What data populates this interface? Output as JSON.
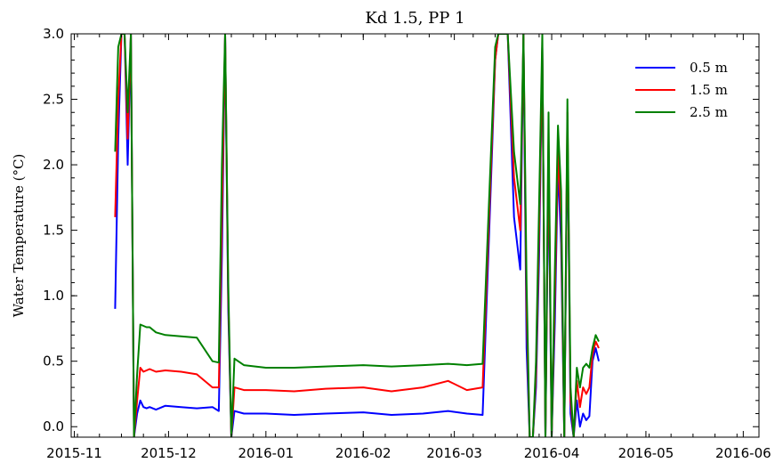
{
  "chart_data": {
    "type": "line",
    "title": "Kd 1.5, PP 1",
    "xlabel": "",
    "ylabel": "Water Temperature (°C)",
    "xlim": [
      "2015-10-31",
      "2016-06-06"
    ],
    "ylim": [
      -0.08,
      3.0
    ],
    "grid": false,
    "legend_position": "top-right",
    "x_ticks": [
      "2015-11",
      "2015-12",
      "2016-01",
      "2016-02",
      "2016-03",
      "2016-04",
      "2016-05",
      "2016-06"
    ],
    "y_ticks": [
      "0.0",
      "0.5",
      "1.0",
      "1.5",
      "2.0",
      "2.5",
      "3.0"
    ],
    "series": [
      {
        "name": "0.5 m",
        "color": "#0000ff",
        "x": [
          "2015-11-14",
          "2015-11-15",
          "2015-11-16",
          "2015-11-17",
          "2015-11-18",
          "2015-11-19",
          "2015-11-20",
          "2015-11-21",
          "2015-11-22",
          "2015-11-23",
          "2015-11-24",
          "2015-11-25",
          "2015-11-27",
          "2015-11-30",
          "2015-12-05",
          "2015-12-10",
          "2015-12-15",
          "2015-12-17",
          "2015-12-18",
          "2015-12-19",
          "2015-12-20",
          "2015-12-21",
          "2015-12-22",
          "2015-12-25",
          "2016-01-01",
          "2016-01-10",
          "2016-01-20",
          "2016-02-01",
          "2016-02-10",
          "2016-02-20",
          "2016-02-28",
          "2016-03-05",
          "2016-03-10",
          "2016-03-13",
          "2016-03-14",
          "2016-03-15",
          "2016-03-16",
          "2016-03-18",
          "2016-03-20",
          "2016-03-22",
          "2016-03-23",
          "2016-03-24",
          "2016-03-25",
          "2016-03-26",
          "2016-03-27",
          "2016-03-28",
          "2016-03-29",
          "2016-03-30",
          "2016-03-31",
          "2016-04-01",
          "2016-04-02",
          "2016-04-03",
          "2016-04-04",
          "2016-04-05",
          "2016-04-06",
          "2016-04-07",
          "2016-04-08",
          "2016-04-09",
          "2016-04-10",
          "2016-04-11",
          "2016-04-12",
          "2016-04-13",
          "2016-04-14",
          "2016-04-15",
          "2016-04-16"
        ],
        "values": [
          0.9,
          2.2,
          3.0,
          3.0,
          2.0,
          3.0,
          -0.08,
          0.1,
          0.2,
          0.15,
          0.14,
          0.15,
          0.13,
          0.16,
          0.15,
          0.14,
          0.15,
          0.12,
          1.3,
          3.0,
          0.9,
          -0.08,
          0.12,
          0.1,
          0.1,
          0.09,
          0.1,
          0.11,
          0.09,
          0.1,
          0.12,
          0.1,
          0.09,
          2.1,
          2.8,
          3.0,
          3.0,
          3.0,
          1.6,
          1.2,
          3.0,
          0.6,
          -0.08,
          -0.08,
          0.3,
          1.3,
          2.9,
          -0.08,
          2.0,
          -0.08,
          0.8,
          2.0,
          1.4,
          -0.08,
          2.3,
          0.1,
          -0.08,
          0.2,
          0.0,
          0.1,
          0.05,
          0.08,
          0.5,
          0.6,
          0.5
        ]
      },
      {
        "name": "1.5 m",
        "color": "#ff0000",
        "x": [
          "2015-11-14",
          "2015-11-15",
          "2015-11-16",
          "2015-11-17",
          "2015-11-18",
          "2015-11-19",
          "2015-11-20",
          "2015-11-21",
          "2015-11-22",
          "2015-11-23",
          "2015-11-24",
          "2015-11-25",
          "2015-11-27",
          "2015-11-30",
          "2015-12-05",
          "2015-12-10",
          "2015-12-15",
          "2015-12-17",
          "2015-12-18",
          "2015-12-19",
          "2015-12-20",
          "2015-12-21",
          "2015-12-22",
          "2015-12-25",
          "2016-01-01",
          "2016-01-10",
          "2016-01-20",
          "2016-02-01",
          "2016-02-10",
          "2016-02-20",
          "2016-02-28",
          "2016-03-05",
          "2016-03-10",
          "2016-03-13",
          "2016-03-14",
          "2016-03-15",
          "2016-03-16",
          "2016-03-18",
          "2016-03-20",
          "2016-03-22",
          "2016-03-23",
          "2016-03-24",
          "2016-03-25",
          "2016-03-26",
          "2016-03-27",
          "2016-03-28",
          "2016-03-29",
          "2016-03-30",
          "2016-03-31",
          "2016-04-01",
          "2016-04-02",
          "2016-04-03",
          "2016-04-04",
          "2016-04-05",
          "2016-04-06",
          "2016-04-07",
          "2016-04-08",
          "2016-04-09",
          "2016-04-10",
          "2016-04-11",
          "2016-04-12",
          "2016-04-13",
          "2016-04-14",
          "2016-04-15",
          "2016-04-16"
        ],
        "values": [
          1.6,
          2.5,
          3.0,
          3.0,
          2.2,
          3.0,
          -0.08,
          0.2,
          0.45,
          0.42,
          0.43,
          0.44,
          0.42,
          0.43,
          0.42,
          0.4,
          0.3,
          0.3,
          1.6,
          3.0,
          1.0,
          -0.08,
          0.3,
          0.28,
          0.28,
          0.27,
          0.29,
          0.3,
          0.27,
          0.3,
          0.35,
          0.28,
          0.3,
          2.2,
          2.8,
          3.0,
          3.0,
          3.0,
          1.9,
          1.5,
          3.0,
          0.9,
          -0.08,
          -0.08,
          0.4,
          1.5,
          2.9,
          -0.08,
          2.2,
          -0.08,
          1.0,
          2.1,
          1.6,
          -0.08,
          2.4,
          0.2,
          -0.08,
          0.35,
          0.15,
          0.3,
          0.25,
          0.3,
          0.55,
          0.65,
          0.6
        ]
      },
      {
        "name": "2.5 m",
        "color": "#008000",
        "x": [
          "2015-11-14",
          "2015-11-15",
          "2015-11-16",
          "2015-11-17",
          "2015-11-18",
          "2015-11-19",
          "2015-11-20",
          "2015-11-21",
          "2015-11-22",
          "2015-11-23",
          "2015-11-24",
          "2015-11-25",
          "2015-11-27",
          "2015-11-30",
          "2015-12-05",
          "2015-12-10",
          "2015-12-15",
          "2015-12-17",
          "2015-12-18",
          "2015-12-19",
          "2015-12-20",
          "2015-12-21",
          "2015-12-22",
          "2015-12-25",
          "2016-01-01",
          "2016-01-10",
          "2016-01-20",
          "2016-02-01",
          "2016-02-10",
          "2016-02-20",
          "2016-02-28",
          "2016-03-05",
          "2016-03-10",
          "2016-03-13",
          "2016-03-14",
          "2016-03-15",
          "2016-03-16",
          "2016-03-18",
          "2016-03-20",
          "2016-03-22",
          "2016-03-23",
          "2016-03-24",
          "2016-03-25",
          "2016-03-26",
          "2016-03-27",
          "2016-03-28",
          "2016-03-29",
          "2016-03-30",
          "2016-03-31",
          "2016-04-01",
          "2016-04-02",
          "2016-04-03",
          "2016-04-04",
          "2016-04-05",
          "2016-04-06",
          "2016-04-07",
          "2016-04-08",
          "2016-04-09",
          "2016-04-10",
          "2016-04-11",
          "2016-04-12",
          "2016-04-13",
          "2016-04-14",
          "2016-04-15",
          "2016-04-16"
        ],
        "values": [
          2.1,
          2.9,
          3.0,
          3.0,
          2.4,
          3.0,
          -0.08,
          0.4,
          0.78,
          0.77,
          0.76,
          0.76,
          0.72,
          0.7,
          0.69,
          0.68,
          0.5,
          0.49,
          2.0,
          3.0,
          1.1,
          -0.08,
          0.52,
          0.47,
          0.45,
          0.45,
          0.46,
          0.47,
          0.46,
          0.47,
          0.48,
          0.47,
          0.48,
          2.3,
          2.9,
          3.0,
          3.0,
          3.0,
          2.1,
          1.7,
          3.0,
          1.1,
          -0.08,
          -0.08,
          0.5,
          1.7,
          3.0,
          -0.08,
          2.4,
          -0.08,
          1.2,
          2.3,
          1.8,
          -0.08,
          2.5,
          0.3,
          -0.08,
          0.45,
          0.3,
          0.45,
          0.48,
          0.45,
          0.6,
          0.7,
          0.65
        ]
      }
    ]
  }
}
